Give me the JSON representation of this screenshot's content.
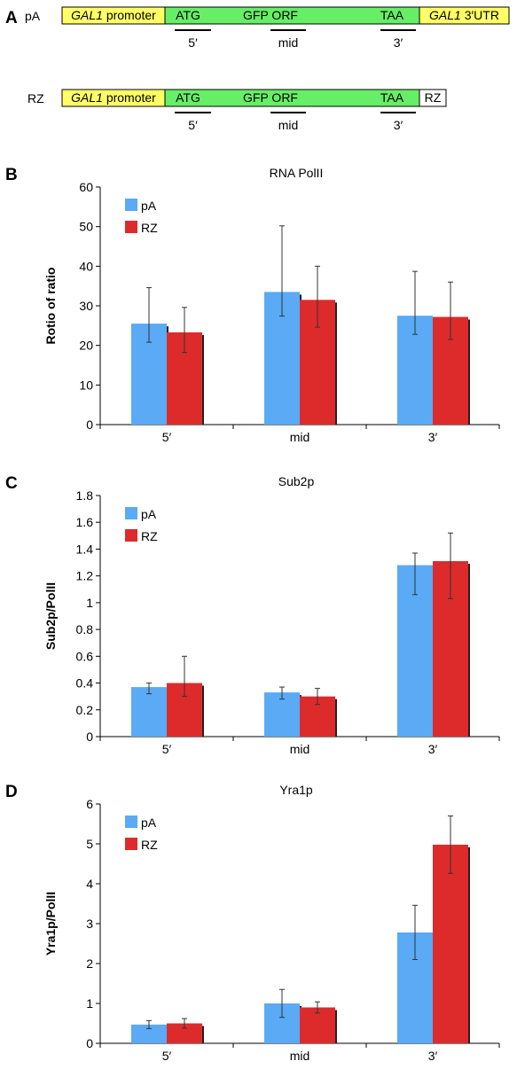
{
  "panel_a": {
    "letter": "A",
    "constructs": [
      {
        "name": "pA",
        "segments": [
          {
            "italic": "GAL1",
            "text": " promoter",
            "color": "#ffff66"
          },
          {
            "text": "ATG",
            "color": "#66ee66"
          },
          {
            "text": "GFP ORF",
            "color": "#66ee66"
          },
          {
            "text": "TAA",
            "color": "#66ee66"
          },
          {
            "italic": "GAL1",
            "text": " 3′UTR",
            "color": "#ffff66"
          }
        ],
        "probes": [
          "5′",
          "mid",
          "3′"
        ]
      },
      {
        "name": "RZ",
        "segments": [
          {
            "italic": "GAL1",
            "text": " promoter",
            "color": "#ffff66"
          },
          {
            "text": "ATG",
            "color": "#66ee66"
          },
          {
            "text": "GFP ORF",
            "color": "#66ee66"
          },
          {
            "text": "TAA",
            "color": "#66ee66"
          },
          {
            "text": "RZ",
            "color": "#ffffff"
          }
        ],
        "probes": [
          "5′",
          "mid",
          "3′"
        ]
      }
    ]
  },
  "colors": {
    "pA": "#5aaaf5",
    "RZ": "#dd2b2b"
  },
  "chart_data": [
    {
      "letter": "B",
      "type": "bar",
      "title": "RNA PolII",
      "ylabel": "Rotio of ratio",
      "categories": [
        "5′",
        "mid",
        "3′"
      ],
      "ylim": [
        0,
        60
      ],
      "yticks": [
        "0",
        "10",
        "20",
        "30",
        "40",
        "50",
        "60"
      ],
      "legend": [
        "pA",
        "RZ"
      ],
      "series": [
        {
          "name": "pA",
          "values": [
            25.5,
            33.5,
            27.5
          ],
          "err_low": [
            20.8,
            27.4,
            22.8
          ],
          "err_high": [
            34.6,
            50.2,
            38.7
          ]
        },
        {
          "name": "RZ",
          "values": [
            23.3,
            31.5,
            27.2
          ],
          "err_low": [
            18.2,
            24.6,
            21.5
          ],
          "err_high": [
            29.6,
            40.0,
            36.0
          ]
        }
      ]
    },
    {
      "letter": "C",
      "type": "bar",
      "title": "Sub2p",
      "ylabel": "Sub2p/PolII",
      "categories": [
        "5′",
        "mid",
        "3′"
      ],
      "ylim": [
        0,
        1.8
      ],
      "yticks": [
        "0",
        "0.2",
        "0.4",
        "0.6",
        "0.8",
        "1",
        "1.2",
        "1.4",
        "1.6",
        "1.8"
      ],
      "legend": [
        "pA",
        "RZ"
      ],
      "series": [
        {
          "name": "pA",
          "values": [
            0.37,
            0.33,
            1.28
          ],
          "err_low": [
            0.32,
            0.28,
            1.06
          ],
          "err_high": [
            0.4,
            0.37,
            1.37
          ]
        },
        {
          "name": "RZ",
          "values": [
            0.4,
            0.3,
            1.31
          ],
          "err_low": [
            0.3,
            0.24,
            1.03
          ],
          "err_high": [
            0.6,
            0.36,
            1.52
          ]
        }
      ]
    },
    {
      "letter": "D",
      "type": "bar",
      "title": "Yra1p",
      "ylabel": "Yra1p/PolII",
      "categories": [
        "5′",
        "mid",
        "3′"
      ],
      "ylim": [
        0,
        6
      ],
      "yticks": [
        "0",
        "1",
        "2",
        "3",
        "4",
        "5",
        "6"
      ],
      "legend": [
        "pA",
        "RZ"
      ],
      "series": [
        {
          "name": "pA",
          "values": [
            0.47,
            1.0,
            2.78
          ],
          "err_low": [
            0.37,
            0.65,
            2.1
          ],
          "err_high": [
            0.57,
            1.35,
            3.46
          ]
        },
        {
          "name": "RZ",
          "values": [
            0.5,
            0.9,
            4.98
          ],
          "err_low": [
            0.38,
            0.76,
            4.26
          ],
          "err_high": [
            0.62,
            1.04,
            5.7
          ]
        }
      ]
    }
  ]
}
